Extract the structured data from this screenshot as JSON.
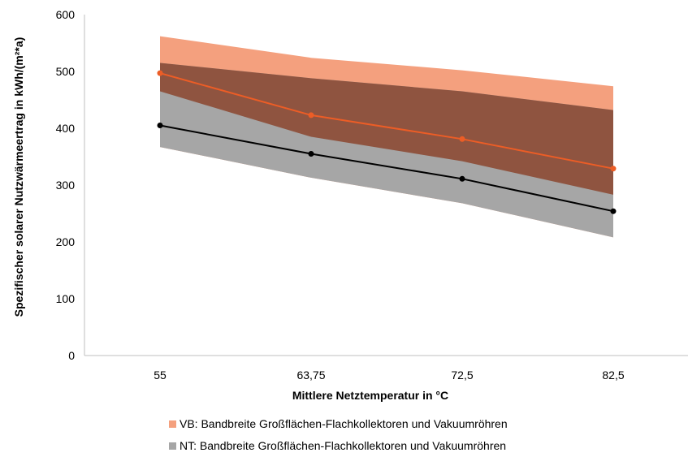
{
  "chart_data": {
    "type": "area",
    "title": "",
    "xlabel": "Mittlere Netztemperatur in °C",
    "ylabel": "Spezifischer solarer Nutzwärmeertrag in kWh/(m²*a)",
    "categories": [
      "55",
      "63,75",
      "72,5",
      "82,5"
    ],
    "ylim": [
      0,
      600
    ],
    "yticks": [
      0,
      100,
      200,
      300,
      400,
      500,
      600
    ],
    "grid": false,
    "legend_position": "bottom",
    "bands": [
      {
        "name": "VB: Bandbreite Großflächen-Flachkollektoren und Vakuumröhren",
        "upper": [
          562,
          524,
          502,
          474
        ],
        "lower": [
          515,
          488,
          465,
          432
        ],
        "color": "#f4a07e"
      },
      {
        "name": "NT: Bandbreite Großflächen-Flachkollektoren und Vakuumröhren",
        "upper": [
          465,
          385,
          342,
          283
        ],
        "lower": [
          367,
          313,
          268,
          208
        ],
        "color": "#a6a6a6"
      }
    ],
    "overlap_color": "#8f5440",
    "series": [
      {
        "values": [
          497,
          423,
          381,
          329
        ],
        "color": "#ec5d26"
      },
      {
        "values": [
          405,
          355,
          311,
          254
        ],
        "color": "#000000"
      }
    ]
  }
}
